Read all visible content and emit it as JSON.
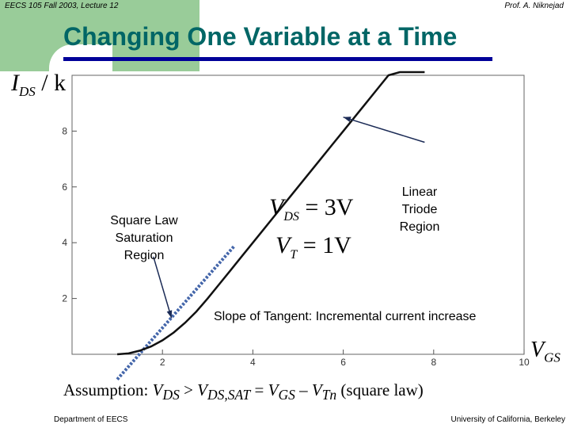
{
  "header": {
    "left": "EECS 105 Fall 2003, Lecture 12",
    "right": "Prof. A. Niknejad"
  },
  "title": "Changing One Variable at a Time",
  "annotations": {
    "square_law": [
      "Square Law",
      "Saturation",
      "Region"
    ],
    "linear": [
      "Linear",
      "Triode",
      "Region"
    ],
    "slope": "Slope of Tangent:  Incremental current increase",
    "formula_vds": {
      "var": "V",
      "sub": "DS",
      "rhs": " = 3V"
    },
    "formula_vt": {
      "var": "V",
      "sub": "T",
      "rhs": " = 1V"
    }
  },
  "assumption": {
    "prefix": "Assumption:  ",
    "v1": "V",
    "s1": "DS",
    "op1": " > ",
    "v2": "V",
    "s2": "DS,SAT",
    "op2": " = ",
    "v3": "V",
    "s3": "GS",
    "op3": " – ",
    "v4": "V",
    "s4": "Tn",
    "suffix": " (square law)"
  },
  "footer": {
    "left": "Department of EECS",
    "right": "University of California, Berkeley"
  },
  "colors": {
    "corner": "#99cc99",
    "title": "#006666",
    "rule": "#000099",
    "tangent": "#4466aa"
  },
  "chart_data": {
    "type": "line",
    "title": "",
    "xlabel": {
      "var": "V",
      "sub": "GS"
    },
    "ylabel": {
      "var": "I",
      "sub": "DS",
      "suffix": " / k"
    },
    "xlim": [
      0,
      10
    ],
    "ylim": [
      0,
      10
    ],
    "x_ticks": [
      2,
      4,
      6,
      8,
      10
    ],
    "y_ticks": [
      2,
      4,
      6,
      8
    ],
    "grid": false,
    "series": [
      {
        "curve": "I_DS/k vs V_GS",
        "x": [
          1.0,
          1.25,
          1.5,
          1.75,
          2.0,
          2.25,
          2.5,
          2.75,
          3.0,
          3.25,
          3.5,
          3.75,
          4.0,
          4.25,
          4.5,
          4.75,
          5.0,
          5.25,
          5.5,
          5.75,
          6.0,
          6.25,
          6.5,
          6.75,
          7.0,
          7.25,
          7.5,
          7.8
        ],
        "y": [
          0.0,
          0.03,
          0.13,
          0.28,
          0.5,
          0.78,
          1.13,
          1.53,
          2.0,
          2.5,
          3.0,
          3.5,
          4.0,
          4.5,
          5.0,
          5.5,
          6.0,
          6.5,
          7.0,
          7.5,
          8.0,
          8.5,
          9.0,
          9.5,
          10.0,
          10.5,
          11.0,
          11.6
        ]
      }
    ],
    "tangent_line": {
      "x": [
        1.0,
        3.6
      ],
      "y": [
        -0.9,
        3.9
      ],
      "style": "dashed"
    },
    "arrows": [
      {
        "from": [
          1.8,
          3.5
        ],
        "to": [
          2.2,
          1.3
        ]
      },
      {
        "from": [
          7.8,
          7.6
        ],
        "to": [
          6.0,
          8.5
        ]
      }
    ]
  }
}
